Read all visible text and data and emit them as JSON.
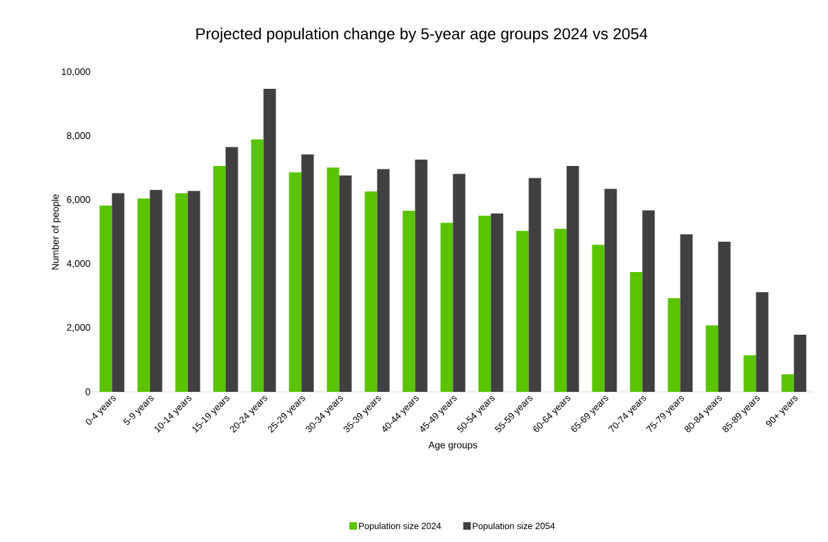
{
  "chart_data": {
    "type": "bar",
    "title": "Projected population change by 5-year age groups 2024 vs 2054",
    "xlabel": "Age groups",
    "ylabel": "Number of people",
    "categories": [
      "0-4 years",
      "5-9 years",
      "10-14 years",
      "15-19 years",
      "20-24 years",
      "25-29 years",
      "30-34 years",
      "35-39 years",
      "40-44 years",
      "45-49 years",
      "50-54 years",
      "55-59 years",
      "60-64 years",
      "65-69 years",
      "70-74 years",
      "75-79 years",
      "80-84 years",
      "85-89 years",
      "90+ years"
    ],
    "series": [
      {
        "name": "Population size 2024",
        "color": "#5ac400",
        "values": [
          5830,
          6050,
          6220,
          7070,
          7900,
          6870,
          7020,
          6270,
          5670,
          5290,
          5510,
          5040,
          5100,
          4600,
          3750,
          2930,
          2080,
          1150,
          550
        ]
      },
      {
        "name": "Population size 2054",
        "color": "#404040",
        "values": [
          6220,
          6320,
          6290,
          7660,
          9480,
          7430,
          6770,
          6970,
          7270,
          6820,
          5580,
          6690,
          7070,
          6350,
          5680,
          4930,
          4700,
          3120,
          1790
        ]
      }
    ],
    "ylim": [
      0,
      10000
    ],
    "yticks": [
      0,
      {
        "value": 2000,
        "label": "2,000"
      },
      {
        "value": 4000,
        "label": "4,000"
      },
      {
        "value": 6000,
        "label": "6,000"
      },
      {
        "value": 8000,
        "label": "8,000"
      },
      {
        "value": 10000,
        "label": "10,000"
      }
    ],
    "legend": "bottom"
  }
}
